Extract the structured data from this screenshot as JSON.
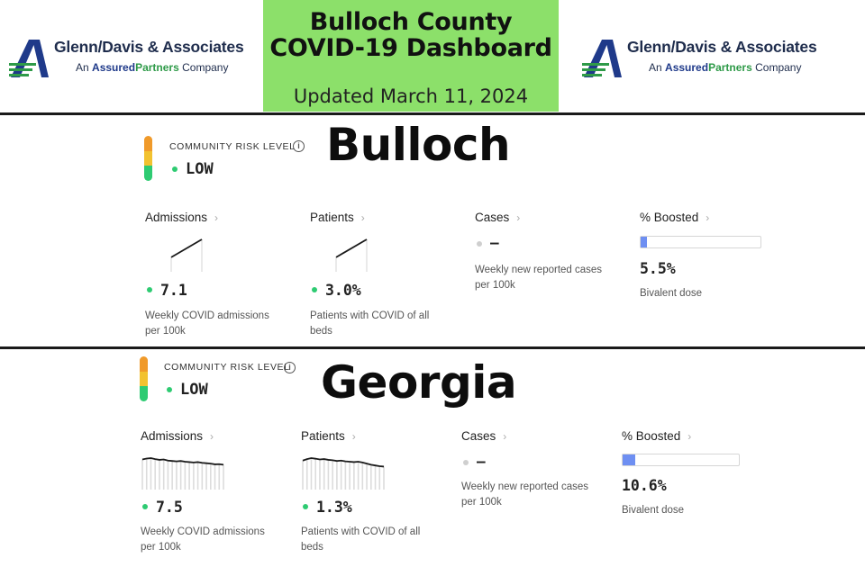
{
  "header": {
    "logo_name": "Glenn/Davis & Associates",
    "logo_tag_prefix": "An",
    "logo_tag_brand1": "Assured",
    "logo_tag_brand2": "Partners",
    "logo_tag_suffix": "Company",
    "title_line1": "Bulloch County",
    "title_line2": "COVID-19 Dashboard",
    "updated": "Updated March 11, 2024"
  },
  "colors": {
    "title_bg": "#8ce06a",
    "risk_low": "#2ecb72",
    "boost_fill": "#6e8ff2",
    "logo_navy": "#1f2d4d",
    "logo_green": "#2e9a48"
  },
  "bulloch": {
    "region": "Bulloch",
    "risk_label": "COMMUNITY RISK LEVEL",
    "risk_value": "LOW",
    "admissions": {
      "title": "Admissions",
      "value": "7.1",
      "desc": "Weekly COVID admissions per 100k",
      "trend": [
        0,
        1
      ]
    },
    "patients": {
      "title": "Patients",
      "value": "3.0%",
      "desc": "Patients with COVID of all beds",
      "trend": [
        0,
        1
      ]
    },
    "cases": {
      "title": "Cases",
      "value": "–",
      "desc": "Weekly new reported cases per 100k"
    },
    "boosted": {
      "title": "% Boosted",
      "value": "5.5%",
      "desc": "Bivalent dose",
      "fraction": 0.055
    }
  },
  "georgia": {
    "region": "Georgia",
    "risk_label": "COMMUNITY RISK LEVEL",
    "risk_value": "LOW",
    "admissions": {
      "title": "Admissions",
      "value": "7.5",
      "desc": "Weekly COVID admissions per 100k",
      "trend": [
        0.88,
        0.93,
        0.95,
        0.9,
        0.86,
        0.88,
        0.82,
        0.8,
        0.78,
        0.8,
        0.76,
        0.74,
        0.72,
        0.74,
        0.7,
        0.68,
        0.66,
        0.62,
        0.63,
        0.6
      ]
    },
    "patients": {
      "title": "Patients",
      "value": "1.3%",
      "desc": "Patients with COVID of all beds",
      "trend": [
        0.82,
        0.9,
        0.95,
        0.92,
        0.88,
        0.9,
        0.86,
        0.84,
        0.8,
        0.82,
        0.78,
        0.76,
        0.74,
        0.76,
        0.72,
        0.66,
        0.6,
        0.56,
        0.52,
        0.5
      ]
    },
    "cases": {
      "title": "Cases",
      "value": "–",
      "desc": "Weekly new reported cases per 100k"
    },
    "boosted": {
      "title": "% Boosted",
      "value": "10.6%",
      "desc": "Bivalent dose",
      "fraction": 0.106
    }
  }
}
